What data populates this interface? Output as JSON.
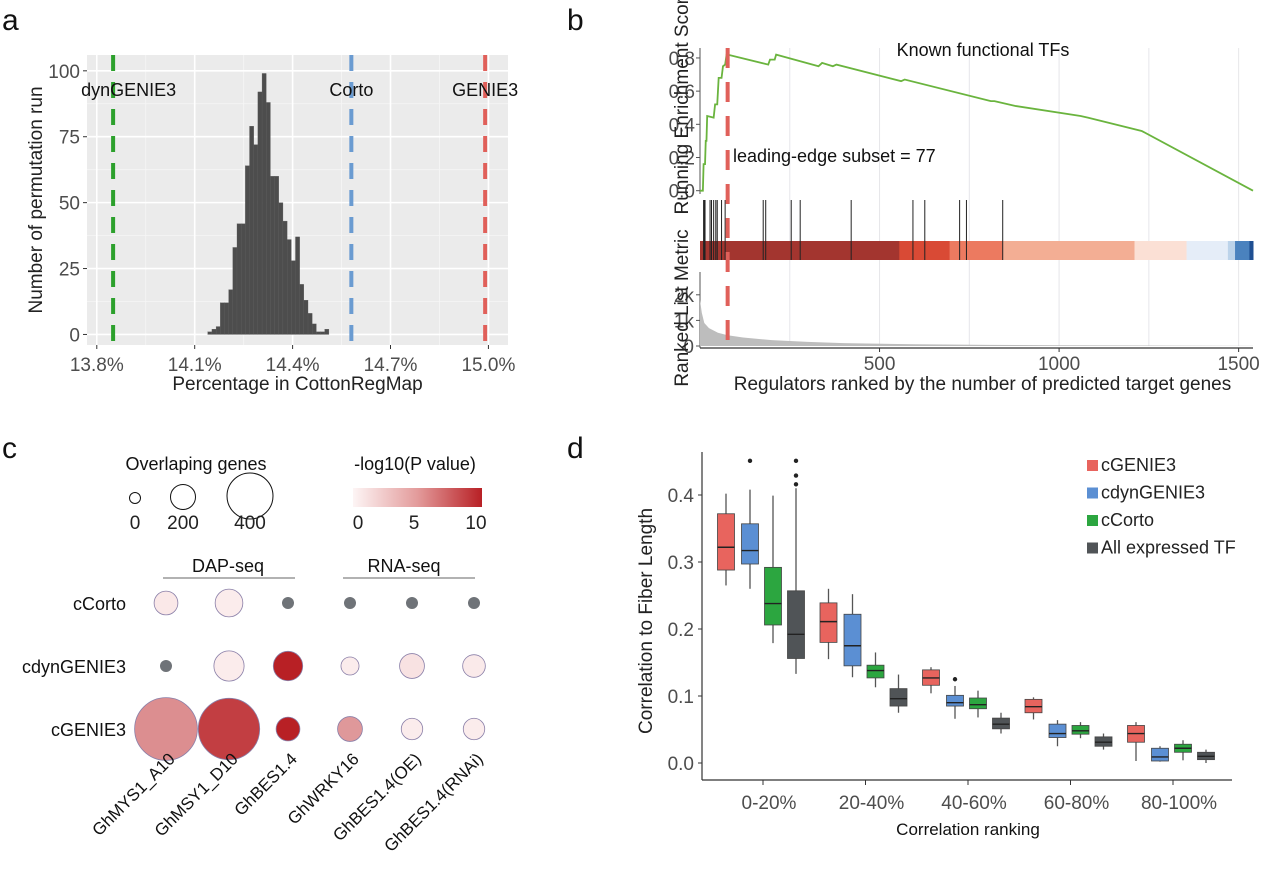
{
  "figure": {
    "panel_labels": [
      "a",
      "b",
      "c",
      "d"
    ]
  },
  "chart_data": [
    {
      "id": "a",
      "type": "bar",
      "subtype": "histogram",
      "title": "",
      "xlabel": "Percentage in CottonRegMap",
      "ylabel": "Number of permutation run",
      "xlim": [
        13.77,
        15.06
      ],
      "ylim": [
        -4,
        106
      ],
      "x_ticks": [
        13.8,
        14.1,
        14.4,
        14.7,
        15.0
      ],
      "x_tick_labels": [
        "13.8%",
        "14.1%",
        "14.4%",
        "14.7%",
        "15.0%"
      ],
      "y_ticks": [
        0,
        25,
        50,
        75,
        100
      ],
      "y_tick_labels": [
        "0",
        "25",
        "50",
        "75",
        "100"
      ],
      "grid": true,
      "bin_start": 14.14,
      "bin_width": 0.0128,
      "counts": [
        1,
        2,
        3,
        12,
        12,
        17,
        33,
        42,
        42,
        64,
        79,
        72,
        92,
        99,
        88,
        60,
        60,
        50,
        43,
        36,
        28,
        37,
        19,
        13,
        8,
        4,
        1,
        1,
        2
      ],
      "vlines": [
        {
          "label": "dynGENIE3",
          "x": 13.85,
          "color": "#2ca02c"
        },
        {
          "label": "Corto",
          "x": 14.58,
          "color": "#6a9bd1"
        },
        {
          "label": "GENIE3",
          "x": 14.99,
          "color": "#e0605a"
        }
      ],
      "bar_color": "#4d4d4d",
      "background": "#ebebeb"
    },
    {
      "id": "b",
      "type": "line",
      "subtype": "gsea",
      "title": "Known functional TFs",
      "xlabel": "Regulators ranked by the number of predicted target genes",
      "ylabel_top": "Running Enrichment Score",
      "ylabel_bottom": "Ranked List Metric",
      "xlim": [
        0,
        1540
      ],
      "x_ticks": [
        500,
        1000,
        1500
      ],
      "x_tick_labels": [
        "500",
        "1000",
        "1500"
      ],
      "es_ylim": [
        -0.02,
        0.86
      ],
      "es_ticks": [
        0.0,
        0.2,
        0.4,
        0.6,
        0.8
      ],
      "es_tick_labels": [
        "0.0",
        "0.2",
        "0.4",
        "0.6",
        "0.8"
      ],
      "metric_ylim": [
        0,
        2500
      ],
      "metric_ticks": [
        0,
        1000,
        2000
      ],
      "metric_tick_labels": [
        "0",
        "1k",
        "2k"
      ],
      "annotation": "leading-edge subset = 77",
      "leading_edge_rank": 77,
      "es_curve": [
        [
          0,
          0.0
        ],
        [
          8,
          0.0
        ],
        [
          10,
          0.16
        ],
        [
          14,
          0.16
        ],
        [
          16,
          0.3
        ],
        [
          18,
          0.3
        ],
        [
          20,
          0.45
        ],
        [
          38,
          0.44
        ],
        [
          42,
          0.52
        ],
        [
          48,
          0.52
        ],
        [
          52,
          0.68
        ],
        [
          60,
          0.68
        ],
        [
          64,
          0.75
        ],
        [
          70,
          0.76
        ],
        [
          74,
          0.82
        ],
        [
          77,
          0.82
        ],
        [
          190,
          0.76
        ],
        [
          195,
          0.79
        ],
        [
          208,
          0.79
        ],
        [
          212,
          0.82
        ],
        [
          330,
          0.75
        ],
        [
          340,
          0.77
        ],
        [
          370,
          0.75
        ],
        [
          380,
          0.76
        ],
        [
          560,
          0.66
        ],
        [
          570,
          0.67
        ],
        [
          810,
          0.54
        ],
        [
          820,
          0.54
        ],
        [
          880,
          0.51
        ],
        [
          1060,
          0.45
        ],
        [
          1080,
          0.44
        ],
        [
          1230,
          0.36
        ],
        [
          1540,
          0.0
        ]
      ],
      "hits": [
        10,
        12,
        14,
        28,
        32,
        38,
        44,
        48,
        60,
        70,
        176,
        183,
        254,
        279,
        421,
        593,
        626,
        723,
        742,
        843
      ],
      "metric_curve": [
        [
          0,
          1800
        ],
        [
          5,
          1300
        ],
        [
          12,
          900
        ],
        [
          25,
          700
        ],
        [
          50,
          520
        ],
        [
          77,
          420
        ],
        [
          120,
          330
        ],
        [
          200,
          230
        ],
        [
          300,
          160
        ],
        [
          400,
          110
        ],
        [
          600,
          70
        ],
        [
          800,
          45
        ],
        [
          1000,
          30
        ],
        [
          1300,
          15
        ],
        [
          1540,
          5
        ]
      ],
      "color_bar": [
        {
          "from": 0,
          "to": 555,
          "color": "#a3352f"
        },
        {
          "from": 555,
          "to": 695,
          "color": "#d94a35"
        },
        {
          "from": 695,
          "to": 843,
          "color": "#ec7a60"
        },
        {
          "from": 843,
          "to": 1210,
          "color": "#f3ae94"
        },
        {
          "from": 1210,
          "to": 1355,
          "color": "#fbe0d5"
        },
        {
          "from": 1355,
          "to": 1470,
          "color": "#e5edf8"
        },
        {
          "from": 1470,
          "to": 1490,
          "color": "#bcd3ea"
        },
        {
          "from": 1490,
          "to": 1530,
          "color": "#4a82be"
        },
        {
          "from": 1530,
          "to": 1540,
          "color": "#1f4f92"
        }
      ],
      "es_color": "#6ab43e",
      "leading_edge_color": "#e0605a",
      "metric_color": "#bdbdbd"
    },
    {
      "id": "c",
      "type": "scatter",
      "subtype": "dot-plot",
      "rows": [
        "cCorto",
        "cdynGENIE3",
        "cGENIE3"
      ],
      "columns": [
        "GhMYS1_A10",
        "GhMSY1_D10",
        "GhBES1.4",
        "GhWRKY16",
        "GhBES1.4(OE)",
        "GhBES1.4(RNAi)"
      ],
      "column_groups": [
        {
          "label": "DAP-seq",
          "columns": [
            "GhMYS1_A10",
            "GhMSY1_D10",
            "GhBES1.4"
          ]
        },
        {
          "label": "RNA-seq",
          "columns": [
            "GhWRKY16",
            "GhBES1.4(OE)",
            "GhBES1.4(RNAi)"
          ]
        }
      ],
      "size_legend_title": "Overlaping genes",
      "size_legend_values": [
        0,
        200,
        400
      ],
      "size_legend_labels": [
        "0",
        "200",
        "400"
      ],
      "color_legend_title": "-log10(P value)",
      "color_legend_ticks": [
        0,
        5,
        10
      ],
      "color_legend_labels": [
        "0",
        "5",
        "10"
      ],
      "color_low": "#fdf2f2",
      "color_high": "#b82025",
      "na_color": "#6f7378",
      "points": [
        {
          "row": "cCorto",
          "col": "GhMYS1_A10",
          "size": 40,
          "neglog10p": 0.5
        },
        {
          "row": "cCorto",
          "col": "GhMSY1_D10",
          "size": 60,
          "neglog10p": 0.3
        },
        {
          "row": "cCorto",
          "col": "GhBES1.4",
          "size": 10,
          "neglog10p": null
        },
        {
          "row": "cCorto",
          "col": "GhWRKY16",
          "size": 10,
          "neglog10p": null
        },
        {
          "row": "cCorto",
          "col": "GhBES1.4(OE)",
          "size": 10,
          "neglog10p": null
        },
        {
          "row": "cCorto",
          "col": "GhBES1.4(RNAi)",
          "size": 10,
          "neglog10p": null
        },
        {
          "row": "cdynGENIE3",
          "col": "GhMYS1_A10",
          "size": 8,
          "neglog10p": null
        },
        {
          "row": "cdynGENIE3",
          "col": "GhMSY1_D10",
          "size": 75,
          "neglog10p": 0.3
        },
        {
          "row": "cdynGENIE3",
          "col": "GhBES1.4",
          "size": 70,
          "neglog10p": 10.5
        },
        {
          "row": "cdynGENIE3",
          "col": "GhWRKY16",
          "size": 18,
          "neglog10p": 0.3
        },
        {
          "row": "cdynGENIE3",
          "col": "GhBES1.4(OE)",
          "size": 45,
          "neglog10p": 0.8
        },
        {
          "row": "cdynGENIE3",
          "col": "GhBES1.4(RNAi)",
          "size": 35,
          "neglog10p": 0.4
        },
        {
          "row": "cGENIE3",
          "col": "GhMYS1_A10",
          "size": 420,
          "neglog10p": 5.0
        },
        {
          "row": "cGENIE3",
          "col": "GhMSY1_D10",
          "size": 400,
          "neglog10p": 9.0
        },
        {
          "row": "cGENIE3",
          "col": "GhBES1.4",
          "size": 40,
          "neglog10p": 10.5
        },
        {
          "row": "cGENIE3",
          "col": "GhWRKY16",
          "size": 45,
          "neglog10p": 4.5
        },
        {
          "row": "cGENIE3",
          "col": "GhBES1.4(OE)",
          "size": 30,
          "neglog10p": 0.3
        },
        {
          "row": "cGENIE3",
          "col": "GhBES1.4(RNAi)",
          "size": 30,
          "neglog10p": 0.3
        }
      ]
    },
    {
      "id": "d",
      "type": "bar",
      "subtype": "boxplot",
      "xlabel": "Correlation ranking",
      "ylabel": "Correlation to Fiber Length",
      "categories": [
        "0-20%",
        "20-40%",
        "40-60%",
        "60-80%",
        "80-100%"
      ],
      "ylim": [
        -0.02,
        0.47
      ],
      "y_ticks": [
        0.0,
        0.1,
        0.2,
        0.3,
        0.4
      ],
      "y_tick_labels": [
        "0.0",
        "0.1",
        "0.2",
        "0.3",
        "0.4"
      ],
      "legend_position": "top-right",
      "series": [
        {
          "name": "cGENIE3",
          "color": "#e8645e",
          "boxes": [
            {
              "min": 0.265,
              "q1": 0.288,
              "median": 0.322,
              "q3": 0.372,
              "max": 0.402,
              "outliers": []
            },
            {
              "min": 0.155,
              "q1": 0.18,
              "median": 0.211,
              "q3": 0.239,
              "max": 0.26,
              "outliers": []
            },
            {
              "min": 0.104,
              "q1": 0.116,
              "median": 0.127,
              "q3": 0.139,
              "max": 0.143,
              "outliers": []
            },
            {
              "min": 0.065,
              "q1": 0.075,
              "median": 0.084,
              "q3": 0.095,
              "max": 0.098,
              "outliers": []
            },
            {
              "min": 0.003,
              "q1": 0.031,
              "median": 0.044,
              "q3": 0.056,
              "max": 0.061,
              "outliers": []
            }
          ]
        },
        {
          "name": "cdynGENIE3",
          "color": "#5b8fd3",
          "boxes": [
            {
              "min": 0.26,
              "q1": 0.297,
              "median": 0.317,
              "q3": 0.357,
              "max": 0.408,
              "outliers": [
                0.451
              ]
            },
            {
              "min": 0.128,
              "q1": 0.145,
              "median": 0.175,
              "q3": 0.222,
              "max": 0.252,
              "outliers": []
            },
            {
              "min": 0.066,
              "q1": 0.085,
              "median": 0.09,
              "q3": 0.101,
              "max": 0.115,
              "outliers": [
                0.125
              ]
            },
            {
              "min": 0.025,
              "q1": 0.038,
              "median": 0.044,
              "q3": 0.058,
              "max": 0.064,
              "outliers": []
            },
            {
              "min": 0.002,
              "q1": 0.003,
              "median": 0.009,
              "q3": 0.022,
              "max": 0.025,
              "outliers": []
            }
          ]
        },
        {
          "name": "cCorto",
          "color": "#2ca640",
          "boxes": [
            {
              "min": 0.179,
              "q1": 0.206,
              "median": 0.238,
              "q3": 0.292,
              "max": 0.399,
              "outliers": []
            },
            {
              "min": 0.113,
              "q1": 0.127,
              "median": 0.138,
              "q3": 0.146,
              "max": 0.165,
              "outliers": []
            },
            {
              "min": 0.068,
              "q1": 0.081,
              "median": 0.087,
              "q3": 0.097,
              "max": 0.108,
              "outliers": []
            },
            {
              "min": 0.037,
              "q1": 0.043,
              "median": 0.048,
              "q3": 0.056,
              "max": 0.061,
              "outliers": []
            },
            {
              "min": 0.004,
              "q1": 0.016,
              "median": 0.022,
              "q3": 0.028,
              "max": 0.034,
              "outliers": []
            }
          ]
        },
        {
          "name": "All expressed TF",
          "color": "#505457",
          "boxes": [
            {
              "min": 0.133,
              "q1": 0.156,
              "median": 0.192,
              "q3": 0.257,
              "max": 0.41,
              "outliers": [
                0.416,
                0.429,
                0.451
              ]
            },
            {
              "min": 0.075,
              "q1": 0.085,
              "median": 0.096,
              "q3": 0.111,
              "max": 0.132,
              "outliers": []
            },
            {
              "min": 0.044,
              "q1": 0.051,
              "median": 0.058,
              "q3": 0.067,
              "max": 0.075,
              "outliers": []
            },
            {
              "min": 0.02,
              "q1": 0.025,
              "median": 0.031,
              "q3": 0.039,
              "max": 0.044,
              "outliers": []
            },
            {
              "min": 0.0,
              "q1": 0.005,
              "median": 0.01,
              "q3": 0.016,
              "max": 0.02,
              "outliers": []
            }
          ]
        }
      ]
    }
  ]
}
